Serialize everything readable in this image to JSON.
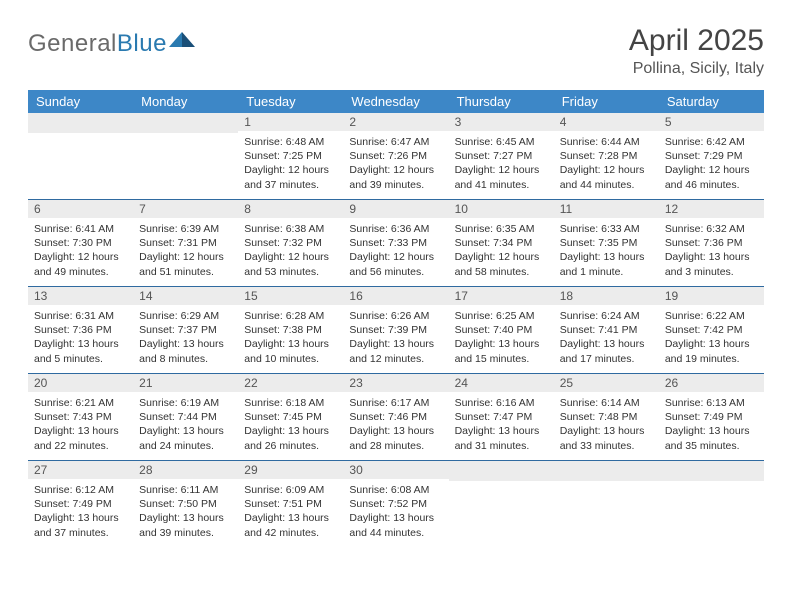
{
  "brand": {
    "general": "General",
    "blue": "Blue"
  },
  "title": "April 2025",
  "location": "Pollina, Sicily, Italy",
  "theme": {
    "header_bg": "#3d87c7",
    "header_text": "#ffffff",
    "daynum_bg": "#ececec",
    "rule_color": "#2f6aa0",
    "text_color": "#333333",
    "logo_gray": "#6a6a6a",
    "logo_blue": "#2a7ab0"
  },
  "day_headers": [
    "Sunday",
    "Monday",
    "Tuesday",
    "Wednesday",
    "Thursday",
    "Friday",
    "Saturday"
  ],
  "weeks": [
    [
      {
        "day": "",
        "sunrise": "",
        "sunset": "",
        "daylight": ""
      },
      {
        "day": "",
        "sunrise": "",
        "sunset": "",
        "daylight": ""
      },
      {
        "day": "1",
        "sunrise": "Sunrise: 6:48 AM",
        "sunset": "Sunset: 7:25 PM",
        "daylight": "Daylight: 12 hours and 37 minutes."
      },
      {
        "day": "2",
        "sunrise": "Sunrise: 6:47 AM",
        "sunset": "Sunset: 7:26 PM",
        "daylight": "Daylight: 12 hours and 39 minutes."
      },
      {
        "day": "3",
        "sunrise": "Sunrise: 6:45 AM",
        "sunset": "Sunset: 7:27 PM",
        "daylight": "Daylight: 12 hours and 41 minutes."
      },
      {
        "day": "4",
        "sunrise": "Sunrise: 6:44 AM",
        "sunset": "Sunset: 7:28 PM",
        "daylight": "Daylight: 12 hours and 44 minutes."
      },
      {
        "day": "5",
        "sunrise": "Sunrise: 6:42 AM",
        "sunset": "Sunset: 7:29 PM",
        "daylight": "Daylight: 12 hours and 46 minutes."
      }
    ],
    [
      {
        "day": "6",
        "sunrise": "Sunrise: 6:41 AM",
        "sunset": "Sunset: 7:30 PM",
        "daylight": "Daylight: 12 hours and 49 minutes."
      },
      {
        "day": "7",
        "sunrise": "Sunrise: 6:39 AM",
        "sunset": "Sunset: 7:31 PM",
        "daylight": "Daylight: 12 hours and 51 minutes."
      },
      {
        "day": "8",
        "sunrise": "Sunrise: 6:38 AM",
        "sunset": "Sunset: 7:32 PM",
        "daylight": "Daylight: 12 hours and 53 minutes."
      },
      {
        "day": "9",
        "sunrise": "Sunrise: 6:36 AM",
        "sunset": "Sunset: 7:33 PM",
        "daylight": "Daylight: 12 hours and 56 minutes."
      },
      {
        "day": "10",
        "sunrise": "Sunrise: 6:35 AM",
        "sunset": "Sunset: 7:34 PM",
        "daylight": "Daylight: 12 hours and 58 minutes."
      },
      {
        "day": "11",
        "sunrise": "Sunrise: 6:33 AM",
        "sunset": "Sunset: 7:35 PM",
        "daylight": "Daylight: 13 hours and 1 minute."
      },
      {
        "day": "12",
        "sunrise": "Sunrise: 6:32 AM",
        "sunset": "Sunset: 7:36 PM",
        "daylight": "Daylight: 13 hours and 3 minutes."
      }
    ],
    [
      {
        "day": "13",
        "sunrise": "Sunrise: 6:31 AM",
        "sunset": "Sunset: 7:36 PM",
        "daylight": "Daylight: 13 hours and 5 minutes."
      },
      {
        "day": "14",
        "sunrise": "Sunrise: 6:29 AM",
        "sunset": "Sunset: 7:37 PM",
        "daylight": "Daylight: 13 hours and 8 minutes."
      },
      {
        "day": "15",
        "sunrise": "Sunrise: 6:28 AM",
        "sunset": "Sunset: 7:38 PM",
        "daylight": "Daylight: 13 hours and 10 minutes."
      },
      {
        "day": "16",
        "sunrise": "Sunrise: 6:26 AM",
        "sunset": "Sunset: 7:39 PM",
        "daylight": "Daylight: 13 hours and 12 minutes."
      },
      {
        "day": "17",
        "sunrise": "Sunrise: 6:25 AM",
        "sunset": "Sunset: 7:40 PM",
        "daylight": "Daylight: 13 hours and 15 minutes."
      },
      {
        "day": "18",
        "sunrise": "Sunrise: 6:24 AM",
        "sunset": "Sunset: 7:41 PM",
        "daylight": "Daylight: 13 hours and 17 minutes."
      },
      {
        "day": "19",
        "sunrise": "Sunrise: 6:22 AM",
        "sunset": "Sunset: 7:42 PM",
        "daylight": "Daylight: 13 hours and 19 minutes."
      }
    ],
    [
      {
        "day": "20",
        "sunrise": "Sunrise: 6:21 AM",
        "sunset": "Sunset: 7:43 PM",
        "daylight": "Daylight: 13 hours and 22 minutes."
      },
      {
        "day": "21",
        "sunrise": "Sunrise: 6:19 AM",
        "sunset": "Sunset: 7:44 PM",
        "daylight": "Daylight: 13 hours and 24 minutes."
      },
      {
        "day": "22",
        "sunrise": "Sunrise: 6:18 AM",
        "sunset": "Sunset: 7:45 PM",
        "daylight": "Daylight: 13 hours and 26 minutes."
      },
      {
        "day": "23",
        "sunrise": "Sunrise: 6:17 AM",
        "sunset": "Sunset: 7:46 PM",
        "daylight": "Daylight: 13 hours and 28 minutes."
      },
      {
        "day": "24",
        "sunrise": "Sunrise: 6:16 AM",
        "sunset": "Sunset: 7:47 PM",
        "daylight": "Daylight: 13 hours and 31 minutes."
      },
      {
        "day": "25",
        "sunrise": "Sunrise: 6:14 AM",
        "sunset": "Sunset: 7:48 PM",
        "daylight": "Daylight: 13 hours and 33 minutes."
      },
      {
        "day": "26",
        "sunrise": "Sunrise: 6:13 AM",
        "sunset": "Sunset: 7:49 PM",
        "daylight": "Daylight: 13 hours and 35 minutes."
      }
    ],
    [
      {
        "day": "27",
        "sunrise": "Sunrise: 6:12 AM",
        "sunset": "Sunset: 7:49 PM",
        "daylight": "Daylight: 13 hours and 37 minutes."
      },
      {
        "day": "28",
        "sunrise": "Sunrise: 6:11 AM",
        "sunset": "Sunset: 7:50 PM",
        "daylight": "Daylight: 13 hours and 39 minutes."
      },
      {
        "day": "29",
        "sunrise": "Sunrise: 6:09 AM",
        "sunset": "Sunset: 7:51 PM",
        "daylight": "Daylight: 13 hours and 42 minutes."
      },
      {
        "day": "30",
        "sunrise": "Sunrise: 6:08 AM",
        "sunset": "Sunset: 7:52 PM",
        "daylight": "Daylight: 13 hours and 44 minutes."
      },
      {
        "day": "",
        "sunrise": "",
        "sunset": "",
        "daylight": ""
      },
      {
        "day": "",
        "sunrise": "",
        "sunset": "",
        "daylight": ""
      },
      {
        "day": "",
        "sunrise": "",
        "sunset": "",
        "daylight": ""
      }
    ]
  ]
}
